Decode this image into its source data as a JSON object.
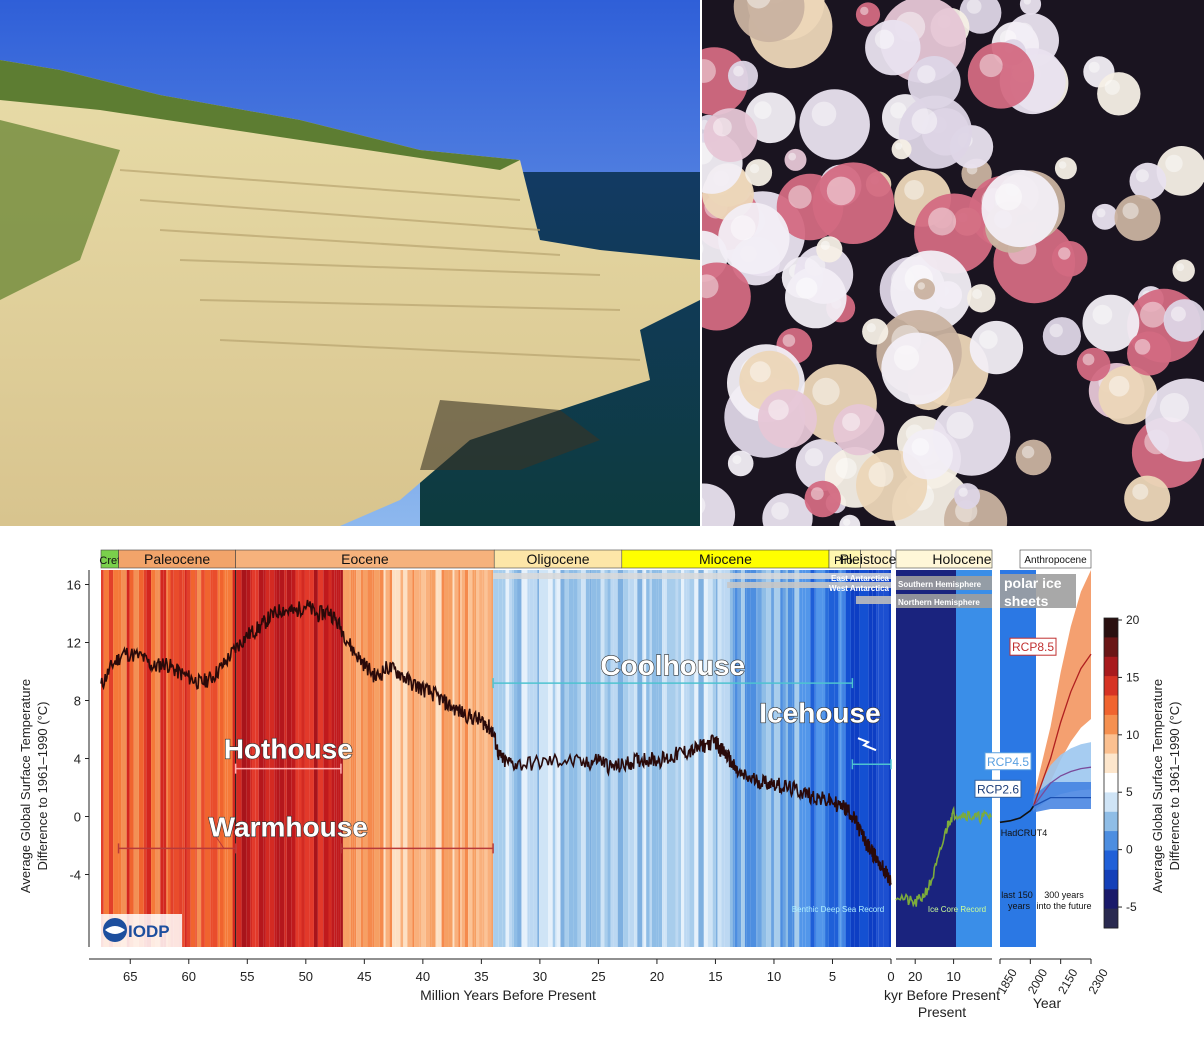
{
  "photos": {
    "left_alt": "limestone-cliff-photo",
    "right_alt": "foraminifera-shells-photo"
  },
  "colors": {
    "hothouse": "#b01c1c",
    "warmhouse": "#e8502e",
    "coolhouse": "#9cc6e8",
    "icehouse": "#1f5fd8",
    "curve": "#2a0a0a",
    "ice_core": "#7cab3c",
    "paleocene": "#f2a46a",
    "eocene": "#f6b27c",
    "oligocene": "#fde6a8",
    "miocene": "#ffff00",
    "cret": "#7ad04b"
  },
  "chart_data": {
    "type": "line",
    "title": "",
    "xlabel": "Million Years Before Present",
    "xlabel_kyr": "kyr Before Present",
    "xlabel_year": "Year",
    "ylabel_left": [
      "Average Global Surface Temperature",
      "Difference to 1961–1990 (°C)"
    ],
    "ylabel_right": [
      "Average Global Surface Temperature",
      "Difference to 1961–1990 (°C)"
    ],
    "yticks": [
      16,
      12,
      8,
      4,
      0,
      -4
    ],
    "ylim": [
      -9,
      17
    ],
    "xlim_myr": [
      67.5,
      0
    ],
    "xticks_myr": [
      65,
      60,
      55,
      50,
      45,
      40,
      35,
      30,
      25,
      20,
      15,
      10,
      5,
      0
    ],
    "xticks_kyr": [
      20,
      10
    ],
    "xticks_year": [
      1850,
      2000,
      2150,
      2300
    ],
    "colorbar_ticks": [
      20,
      15,
      10,
      5,
      0,
      -5
    ],
    "epochs": [
      {
        "name": "Cret",
        "start": 67.5,
        "end": 66.0,
        "color": "#7ad04b"
      },
      {
        "name": "Paleocene",
        "start": 66.0,
        "end": 56.0,
        "color": "#f2a46a"
      },
      {
        "name": "Eocene",
        "start": 56.0,
        "end": 33.9,
        "color": "#f6b27c"
      },
      {
        "name": "Oligocene",
        "start": 33.9,
        "end": 23.0,
        "color": "#fde6a8"
      },
      {
        "name": "Miocene",
        "start": 23.0,
        "end": 5.3,
        "color": "#ffff00"
      },
      {
        "name": "Plio.",
        "start": 5.3,
        "end": 2.6,
        "color": "#fff7b0"
      },
      {
        "name": "Pleistocene",
        "start": 2.6,
        "end": 0.0,
        "color": "#fff3c8"
      }
    ],
    "epoch_labels_extra": [
      "Holocene",
      "Anthropocene"
    ],
    "climate_states": [
      {
        "name": "Hothouse",
        "start": 56.0,
        "end": 47.0,
        "level": 3.3
      },
      {
        "name": "Warmhouse",
        "start": 66.0,
        "end": 34.0,
        "gap": [
          56.0,
          47.0
        ],
        "level": -2.2
      },
      {
        "name": "Coolhouse",
        "start": 34.0,
        "end": 3.3,
        "level": 9.2
      },
      {
        "name": "Icehouse",
        "start": 3.3,
        "end": 0.0,
        "level": 3.6
      }
    ],
    "series": [
      {
        "name": "Benthic Deep Sea Record",
        "x": [
          67.5,
          66.5,
          65.5,
          64,
          63,
          62,
          61,
          60,
          59,
          58,
          57,
          56,
          55,
          54,
          53,
          52,
          51,
          50,
          49,
          48,
          47,
          46,
          45,
          44,
          43,
          42,
          41,
          40,
          39,
          38,
          37,
          36,
          35,
          34.5,
          34,
          33.5,
          33,
          32,
          30,
          28,
          26,
          25,
          24,
          23,
          22,
          21,
          20,
          19,
          18,
          17,
          16,
          15,
          14.5,
          14,
          13.5,
          13,
          12,
          11,
          10,
          9,
          8,
          7,
          6,
          5,
          4,
          3.5,
          3,
          2.5,
          2,
          1.5,
          1,
          0.5,
          0
        ],
        "y": [
          9.0,
          10.5,
          11.3,
          11.0,
          10.3,
          10.6,
          10.0,
          9.6,
          9.2,
          9.6,
          10.5,
          11.6,
          12.5,
          13.0,
          13.8,
          14.3,
          14.1,
          14.6,
          13.9,
          14.2,
          13.0,
          11.5,
          10.5,
          9.6,
          10.3,
          9.9,
          9.2,
          8.8,
          8.4,
          7.8,
          7.3,
          6.9,
          6.6,
          6.3,
          5.8,
          4.2,
          3.8,
          3.6,
          3.7,
          3.9,
          3.6,
          4.0,
          3.4,
          3.5,
          3.8,
          4.0,
          3.9,
          4.0,
          4.4,
          4.5,
          4.9,
          5.2,
          4.6,
          4.2,
          3.5,
          2.9,
          2.6,
          2.4,
          2.3,
          2.0,
          1.8,
          1.5,
          1.2,
          1.0,
          0.6,
          0.3,
          -0.4,
          -1.2,
          -2.0,
          -2.6,
          -3.2,
          -3.8,
          -4.6
        ]
      },
      {
        "name": "Ice Core Record",
        "x": [
          25,
          22,
          20,
          18,
          16,
          14,
          12,
          11,
          10,
          8,
          6,
          4,
          2,
          0
        ],
        "y": [
          -5.4,
          -5.8,
          -6.0,
          -5.5,
          -4.6,
          -3.0,
          -1.0,
          -0.2,
          0.2,
          0.2,
          0.1,
          -0.1,
          0.0,
          0.1
        ]
      },
      {
        "name": "HadCRUT4",
        "x": [
          1850,
          1900,
          1950,
          2000,
          2015
        ],
        "y": [
          -0.4,
          -0.3,
          -0.1,
          0.4,
          0.7
        ]
      },
      {
        "name": "RCP8.5",
        "x": [
          2015,
          2100,
          2150,
          2200,
          2250,
          2300
        ],
        "y": [
          0.7,
          4.0,
          6.5,
          8.6,
          10.2,
          11.2
        ]
      },
      {
        "name": "RCP4.5",
        "x": [
          2015,
          2100,
          2150,
          2200,
          2250,
          2300
        ],
        "y": [
          0.7,
          2.3,
          2.8,
          3.1,
          3.3,
          3.4
        ]
      },
      {
        "name": "RCP2.6",
        "x": [
          2015,
          2100,
          2150,
          2200,
          2250,
          2300
        ],
        "y": [
          0.7,
          1.3,
          1.3,
          1.3,
          1.3,
          1.3
        ]
      }
    ],
    "annotations": {
      "east_antarctica": "East Antarctica",
      "west_antarctica": "West Antarctica",
      "southern_hemisphere": "Southern Hemisphere",
      "northern_hemisphere": "Northern Hemisphere",
      "polar_ice": "polar ice",
      "sheets": "sheets",
      "last_150": "last 150",
      "years": "years",
      "future_300": "300 years",
      "into_future": "into the future",
      "benthic": "Benthic Deep Sea Record",
      "ice_core": "Ice Core Record",
      "hadcrut": "HadCRUT4",
      "rcp85": "RCP8.5",
      "rcp45": "RCP4.5",
      "rcp26": "RCP2.6",
      "logo": "IODP",
      "kyr_line2": "Present"
    }
  }
}
